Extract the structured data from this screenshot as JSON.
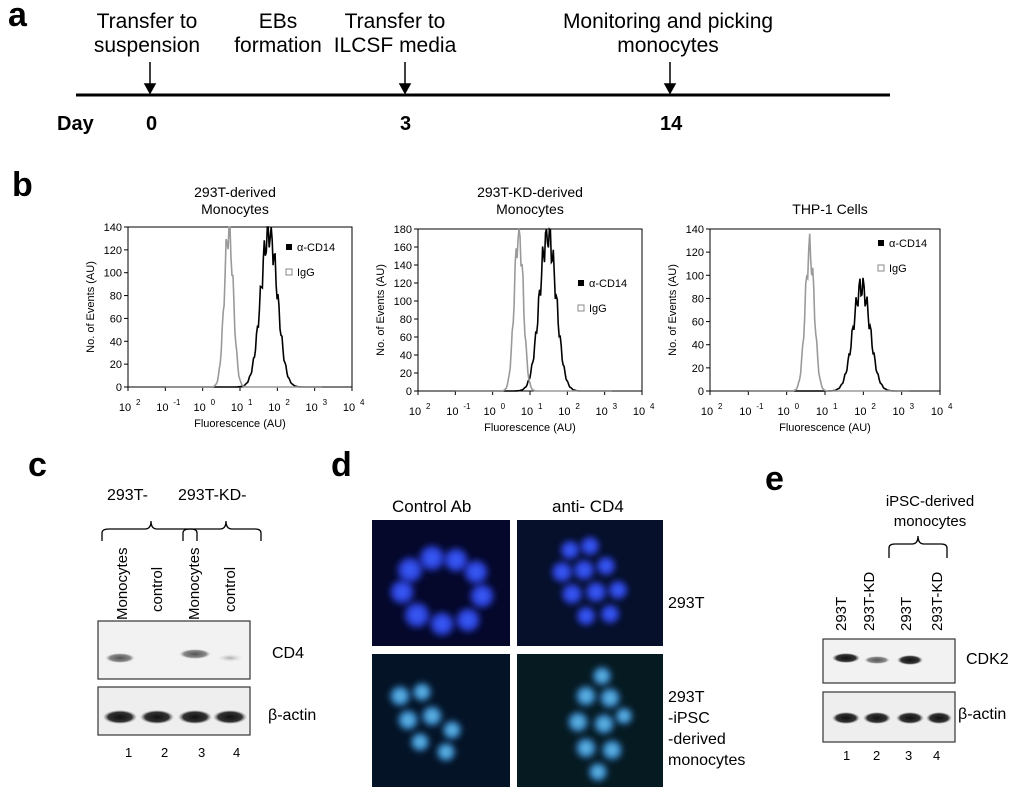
{
  "panels": {
    "a": "a",
    "b": "b",
    "c": "c",
    "d": "d",
    "e": "e"
  },
  "timeline": {
    "steps": [
      {
        "label": "Transfer to suspension"
      },
      {
        "label": "EBs formation"
      },
      {
        "label": "Transfer to ILCSF media"
      },
      {
        "label": "Monitoring and picking monocytes"
      }
    ],
    "day_label": "Day",
    "days": [
      "0",
      "3",
      "14"
    ]
  },
  "flow": {
    "ylabel": "No. of Events (AU)",
    "xlabel": "Fluorescence (AU)",
    "xticks": [
      "10^2",
      "10^-1",
      "10^0",
      "10^1",
      "10^2",
      "10^3",
      "10^4"
    ],
    "legend": [
      "α-CD14",
      "IgG"
    ],
    "plots": [
      {
        "title_line1": "293T-derived",
        "title_line2": "Monocytes",
        "yticks": [
          "0",
          "20",
          "40",
          "60",
          "80",
          "100",
          "120",
          "140"
        ]
      },
      {
        "title_line1": "293T-KD-derived",
        "title_line2": "Monocytes",
        "yticks": [
          "0",
          "20",
          "40",
          "60",
          "80",
          "100",
          "120",
          "140",
          "160",
          "180"
        ]
      },
      {
        "title_line1": "THP-1  Cells",
        "title_line2": "",
        "yticks": [
          "0",
          "20",
          "40",
          "60",
          "80",
          "100",
          "120",
          "140"
        ]
      }
    ]
  },
  "chart_data": [
    {
      "type": "line",
      "title": "293T-derived Monocytes",
      "xlabel": "Fluorescence (AU)",
      "ylabel": "No. of Events (AU)",
      "ylim": [
        0,
        140
      ],
      "x_scale": "log",
      "series": [
        {
          "name": "α-CD14",
          "peak_x": 60,
          "peak_y": 137
        },
        {
          "name": "IgG",
          "peak_x": 5,
          "peak_y": 138
        }
      ]
    },
    {
      "type": "line",
      "title": "293T-KD-derived Monocytes",
      "xlabel": "Fluorescence (AU)",
      "ylabel": "No. of Events (AU)",
      "ylim": [
        0,
        180
      ],
      "x_scale": "log",
      "series": [
        {
          "name": "α-CD14",
          "peak_x": 30,
          "peak_y": 176
        },
        {
          "name": "IgG",
          "peak_x": 5,
          "peak_y": 178
        }
      ]
    },
    {
      "type": "line",
      "title": "THP-1  Cells",
      "xlabel": "Fluorescence (AU)",
      "ylabel": "No. of Events (AU)",
      "ylim": [
        0,
        140
      ],
      "x_scale": "log",
      "series": [
        {
          "name": "α-CD14",
          "peak_x": 90,
          "peak_y": 90
        },
        {
          "name": "IgG",
          "peak_x": 4,
          "peak_y": 122
        }
      ]
    }
  ],
  "gel_c": {
    "groups": [
      "293T-",
      "293T-KD-"
    ],
    "lanes": [
      "Monocytes",
      "control",
      "Monocytes",
      "control"
    ],
    "rows": [
      "CD4",
      "β-actin"
    ],
    "numbers": [
      "1",
      "2",
      "3",
      "4"
    ]
  },
  "micro_d": {
    "cols": [
      "Control Ab",
      "anti- CD4"
    ],
    "rows": [
      "293T",
      "293T\n-iPSC\n-derived\nmonocytes"
    ]
  },
  "gel_e": {
    "group": "iPSC-derived monocytes",
    "lanes": [
      "293T",
      "293T-KD",
      "293T",
      "293T-KD"
    ],
    "rows": [
      "CDK2",
      "β-actin"
    ],
    "numbers": [
      "1",
      "2",
      "3",
      "4"
    ]
  }
}
